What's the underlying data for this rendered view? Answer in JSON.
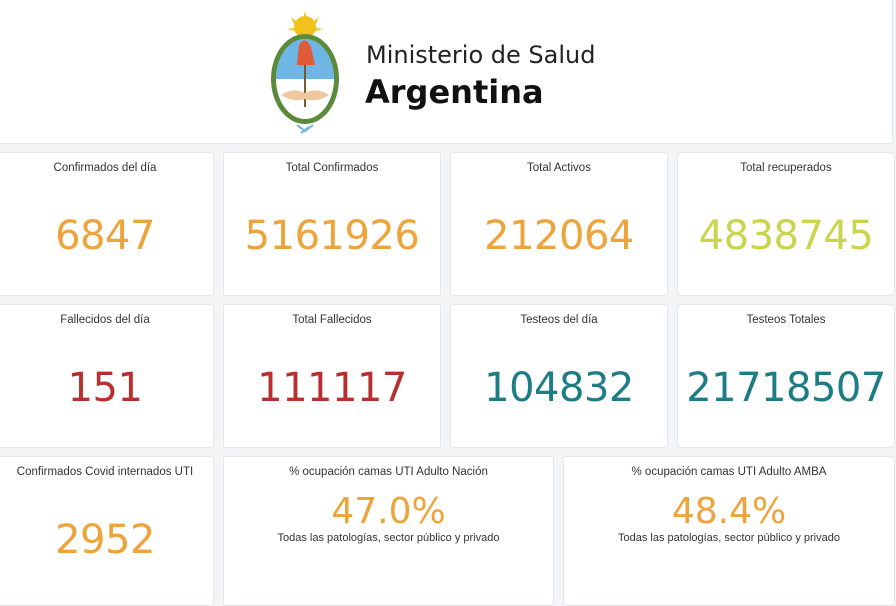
{
  "header": {
    "line1": "Ministerio de Salud",
    "line2": "Argentina"
  },
  "colors": {
    "orange": "#eea43a",
    "green": "#c9d64c",
    "red": "#b7302f",
    "teal": "#1c7d84"
  },
  "cards": [
    {
      "label": "Confirmados del día",
      "value": "6847"
    },
    {
      "label": "Total Confirmados",
      "value": "5161926"
    },
    {
      "label": "Total Activos",
      "value": "212064"
    },
    {
      "label": "Total recuperados",
      "value": "4838745"
    },
    {
      "label": "Fallecidos del día",
      "value": "151"
    },
    {
      "label": "Total Fallecidos",
      "value": "111117"
    },
    {
      "label": "Testeos del día",
      "value": "104832"
    },
    {
      "label": "Testeos Totales",
      "value": "21718507"
    },
    {
      "label": "Confirmados Covid internados UTI",
      "value": "2952"
    },
    {
      "label": "% ocupación camas UTI Adulto Nación",
      "value": "47.0%",
      "sub": "Todas las patologías, sector público y privado"
    },
    {
      "label": "% ocupación camas UTI Adulto AMBA",
      "value": "48.4%",
      "sub": "Todas las patologías, sector público y privado"
    }
  ]
}
